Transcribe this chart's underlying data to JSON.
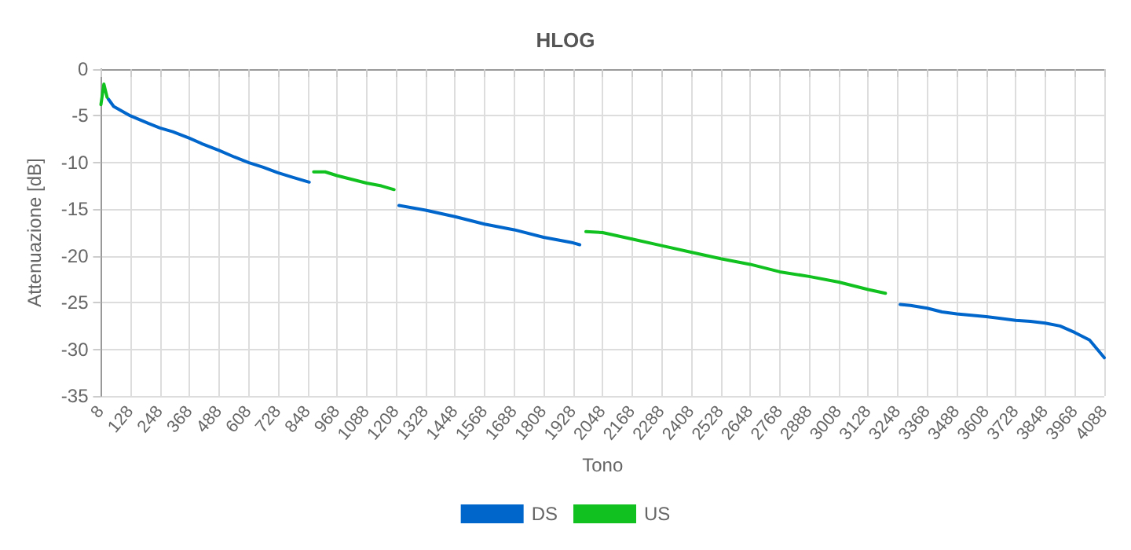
{
  "chart_data": {
    "type": "line",
    "title": "HLOG",
    "xlabel": "Tono",
    "ylabel": "Attenuazione [dB]",
    "xlim": [
      8,
      4088
    ],
    "xticks": [
      8,
      128,
      248,
      368,
      488,
      608,
      728,
      848,
      968,
      1088,
      1208,
      1328,
      1448,
      1568,
      1688,
      1808,
      1928,
      2048,
      2168,
      2288,
      2408,
      2528,
      2648,
      2768,
      2888,
      3008,
      3128,
      3248,
      3368,
      3488,
      3608,
      3728,
      3848,
      3968,
      4088
    ],
    "ylim": [
      -35,
      0
    ],
    "yticks": [
      -35,
      -30,
      -25,
      -20,
      -15,
      -10,
      -5,
      0
    ],
    "grid": true,
    "legend": "bottom",
    "marker": "none",
    "line_style": "solid",
    "series": [
      {
        "name": "DS",
        "color": "#0066cc",
        "x": [
          38,
          60,
          128,
          200,
          248,
          300,
          368,
          420,
          488,
          550,
          608,
          668,
          728,
          790,
          855,
          1000,
          1220,
          1328,
          1448,
          1568,
          1688,
          1808,
          1928,
          1955,
          2500,
          3258,
          3300,
          3368,
          3428,
          3488,
          3608,
          3728,
          3788,
          3848,
          3908,
          3968,
          4028,
          4088
        ],
        "values": [
          -3.2,
          -4.0,
          -5.0,
          -5.8,
          -6.3,
          -6.7,
          -7.4,
          -8.0,
          -8.7,
          -9.4,
          -10.0,
          -10.5,
          -11.1,
          -11.6,
          -12.1,
          null,
          -14.6,
          -15.1,
          -15.8,
          -16.6,
          -17.2,
          -18.0,
          -18.6,
          -18.8,
          null,
          -25.2,
          -25.3,
          -25.6,
          -26.0,
          -26.2,
          -26.5,
          -26.9,
          -27.0,
          -27.2,
          -27.5,
          -28.2,
          -29.0,
          -30.9
        ]
      },
      {
        "name": "US",
        "color": "#11c11f",
        "x": [
          8,
          20,
          33,
          400,
          873,
          920,
          968,
          1028,
          1088,
          1148,
          1200,
          1600,
          1980,
          2048,
          2168,
          2288,
          2408,
          2528,
          2648,
          2708,
          2768,
          2888,
          3008,
          3128,
          3198
        ],
        "values": [
          -3.8,
          -1.6,
          -3.0,
          null,
          -11.0,
          -11.0,
          -11.4,
          -11.8,
          -12.2,
          -12.5,
          -12.9,
          null,
          -17.4,
          -17.5,
          -18.2,
          -18.9,
          -19.6,
          -20.3,
          -20.9,
          -21.3,
          -21.7,
          -22.2,
          -22.8,
          -23.6,
          -24.0
        ]
      }
    ]
  }
}
